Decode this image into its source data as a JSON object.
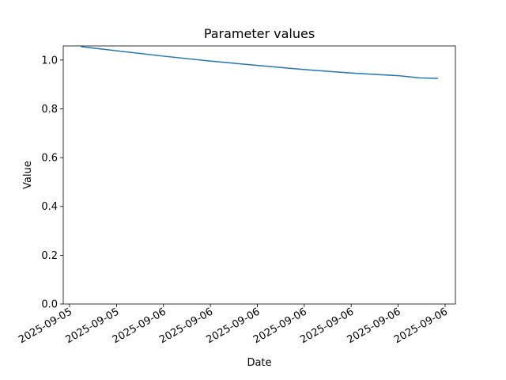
{
  "chart_data": {
    "type": "line",
    "title": "Parameter values",
    "x_label": "Date",
    "y_label": "Value",
    "x": [
      0.24,
      1,
      2,
      3,
      4,
      5,
      6,
      7,
      7.45,
      7.85
    ],
    "series": [
      {
        "color": "#1f77b4",
        "values": [
          1.055,
          1.038,
          1.016,
          0.996,
          0.978,
          0.961,
          0.947,
          0.936,
          0.927,
          0.925
        ]
      }
    ],
    "xlim": [
      -0.135,
      8.22
    ],
    "xticks": [
      {
        "value": 0,
        "label": "2025-09-05"
      },
      {
        "value": 1,
        "label": "2025-09-05"
      },
      {
        "value": 2,
        "label": "2025-09-06"
      },
      {
        "value": 3,
        "label": "2025-09-06"
      },
      {
        "value": 4,
        "label": "2025-09-06"
      },
      {
        "value": 5,
        "label": "2025-09-06"
      },
      {
        "value": 6,
        "label": "2025-09-06"
      },
      {
        "value": 7,
        "label": "2025-09-06"
      },
      {
        "value": 8,
        "label": "2025-09-06"
      }
    ],
    "ylim": [
      0,
      1.058
    ],
    "yticks": [
      {
        "value": 0,
        "label": "0.0"
      },
      0.2,
      0.4,
      0.6,
      0.8,
      {
        "value": 1,
        "label": "1.0"
      }
    ],
    "grid": false
  }
}
